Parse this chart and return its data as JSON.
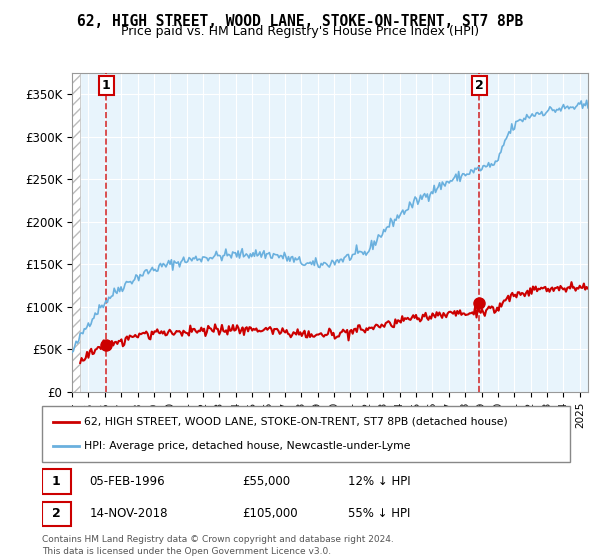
{
  "title": "62, HIGH STREET, WOOD LANE, STOKE-ON-TRENT, ST7 8PB",
  "subtitle": "Price paid vs. HM Land Registry's House Price Index (HPI)",
  "legend_line1": "62, HIGH STREET, WOOD LANE, STOKE-ON-TRENT, ST7 8PB (detached house)",
  "legend_line2": "HPI: Average price, detached house, Newcastle-under-Lyme",
  "table_row1": "1    05-FEB-1996    £55,000    12% ↓ HPI",
  "table_row2": "2    14-NOV-2018    £105,000    55% ↓ HPI",
  "footnote": "Contains HM Land Registry data © Crown copyright and database right 2024.\nThis data is licensed under the Open Government Licence v3.0.",
  "sale1_date": 1996.09,
  "sale1_price": 55000,
  "sale2_date": 2018.87,
  "sale2_price": 105000,
  "marker1_label": "1",
  "marker2_label": "2",
  "hpi_color": "#6ab0de",
  "price_color": "#cc0000",
  "dashed_line_color": "#cc0000",
  "background_hatch_color": "#d0d0d0",
  "plot_bg_color": "#e8f4fc",
  "ylim_max": 375000,
  "ylim_min": 0,
  "xlim_min": 1994.0,
  "xlim_max": 2025.5
}
